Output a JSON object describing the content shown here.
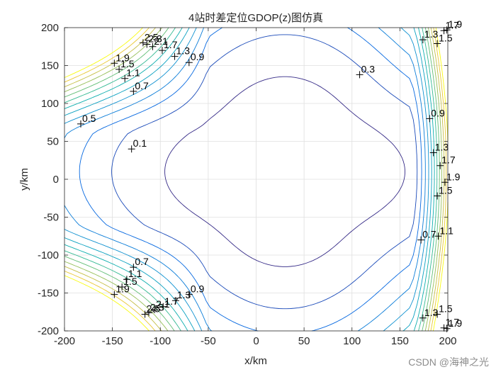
{
  "chart_data": {
    "type": "contour",
    "title": "4站时差定位GDOP(z)图仿真",
    "xlabel": "x/km",
    "ylabel": "y/km",
    "xlim": [
      -200,
      200
    ],
    "ylim": [
      -200,
      200
    ],
    "xticks": [
      -200,
      -150,
      -100,
      -50,
      0,
      50,
      100,
      150,
      200
    ],
    "yticks": [
      -200,
      -150,
      -100,
      -50,
      0,
      50,
      100,
      150,
      200
    ],
    "grid": true,
    "levels": [
      0.1,
      0.3,
      0.5,
      0.7,
      0.9,
      1.1,
      1.3,
      1.5,
      1.7,
      1.9,
      2.1,
      2.3,
      2.5
    ],
    "center": [
      30,
      10
    ],
    "inline_labels": [
      {
        "text": "0.1",
        "x": -130,
        "y": 40
      },
      {
        "text": "0.3",
        "x": 108,
        "y": 138
      },
      {
        "text": "0.5",
        "x": -183,
        "y": 73
      },
      {
        "text": "0.7",
        "x": -128,
        "y": 116
      },
      {
        "text": "0.9",
        "x": -70,
        "y": 154
      },
      {
        "text": "1.1",
        "x": -137,
        "y": 133
      },
      {
        "text": "1.3",
        "x": -85,
        "y": 162
      },
      {
        "text": "1.5",
        "x": -143,
        "y": 145
      },
      {
        "text": "1.7",
        "x": -98,
        "y": 170
      },
      {
        "text": "1.9",
        "x": -148,
        "y": 153
      },
      {
        "text": "2.1",
        "x": -108,
        "y": 175
      },
      {
        "text": "2.3",
        "x": -114,
        "y": 178
      },
      {
        "text": "2.5",
        "x": -118,
        "y": 180
      },
      {
        "text": "0.7",
        "x": -128,
        "y": -116
      },
      {
        "text": "0.9",
        "x": -70,
        "y": -152
      },
      {
        "text": "1.1",
        "x": -135,
        "y": -132
      },
      {
        "text": "1.3",
        "x": -84,
        "y": -160
      },
      {
        "text": "1.5",
        "x": -140,
        "y": -142
      },
      {
        "text": "1.7",
        "x": -97,
        "y": -168
      },
      {
        "text": "1.9",
        "x": -148,
        "y": -152
      },
      {
        "text": "2.1",
        "x": -106,
        "y": -172
      },
      {
        "text": "2.3",
        "x": -112,
        "y": -176
      },
      {
        "text": "2.5",
        "x": -116,
        "y": -178
      },
      {
        "text": "0.7",
        "x": 172,
        "y": -80
      },
      {
        "text": "0.9",
        "x": 181,
        "y": 80
      },
      {
        "text": "1.1",
        "x": 190,
        "y": -75
      },
      {
        "text": "1.3",
        "x": 185,
        "y": 35
      },
      {
        "text": "1.5",
        "x": 189,
        "y": -22
      },
      {
        "text": "1.7",
        "x": 192,
        "y": 18
      },
      {
        "text": "1.9",
        "x": 197,
        "y": -4
      },
      {
        "text": "1.3",
        "x": 174,
        "y": 184
      },
      {
        "text": "1.5",
        "x": 189,
        "y": 179
      },
      {
        "text": "1.7",
        "x": 196,
        "y": 196
      },
      {
        "text": "1.9",
        "x": 199,
        "y": 197
      },
      {
        "text": "1.3",
        "x": 174,
        "y": -183
      },
      {
        "text": "1.5",
        "x": 189,
        "y": -178
      },
      {
        "text": "1.7",
        "x": 196,
        "y": -196
      },
      {
        "text": "1.9",
        "x": 199,
        "y": -197
      }
    ]
  },
  "watermark": "CSDN @海神之光"
}
